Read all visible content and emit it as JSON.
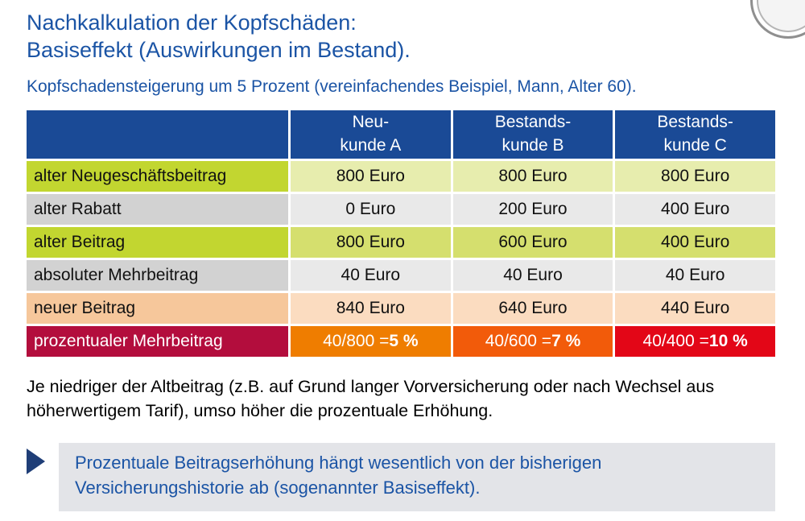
{
  "icons": {
    "logo": "partial-coin-emblem",
    "bullet": "right-arrow-triangle"
  },
  "colors": {
    "title_blue": "#1b54a5",
    "header_blue": "#1a4a96",
    "green_label": "#c2d630",
    "green_light": "#e7edae",
    "green_dark": "#d5df6e",
    "gray_label": "#d2d2d2",
    "gray_light": "#e9e9e9",
    "orange_label": "#f6c79b",
    "orange_light": "#fbdcc0",
    "result_crimson": "#b30d3d",
    "result_orange": "#ef7d00",
    "result_orange_red": "#f25b0a",
    "result_red": "#e30617",
    "callout_bg": "#e3e4e8",
    "arrow_navy": "#1f3e77"
  },
  "title": {
    "line1": "Nachkalkulation der Kopfschäden:",
    "line2": "Basiseffekt (Auswirkungen im Bestand)."
  },
  "subtitle": "Kopfschadensteigerung um 5 Prozent (vereinfachendes Beispiel, Mann, Alter 60).",
  "table": {
    "columns": [
      "Neu-\nkunde A",
      "Bestands-\nkunde B",
      "Bestands-\nkunde C"
    ],
    "rows": [
      {
        "label": "alter Neugeschäftsbeitrag",
        "values": [
          "800 Euro",
          "800 Euro",
          "800 Euro"
        ]
      },
      {
        "label": "alter Rabatt",
        "values": [
          "0 Euro",
          "200 Euro",
          "400 Euro"
        ]
      },
      {
        "label": "alter Beitrag",
        "values": [
          "800 Euro",
          "600 Euro",
          "400 Euro"
        ]
      },
      {
        "label": "absoluter Mehrbeitrag",
        "values": [
          "40 Euro",
          "40 Euro",
          "40 Euro"
        ]
      },
      {
        "label": "neuer Beitrag",
        "values": [
          "840 Euro",
          "640 Euro",
          "440 Euro"
        ]
      },
      {
        "label": "prozentualer Mehrbeitrag",
        "values": [
          {
            "expr": "40/800 = ",
            "pct": "5 %"
          },
          {
            "expr": "40/600 = ",
            "pct": "7 %"
          },
          {
            "expr": "40/400 = ",
            "pct": "10 %"
          }
        ]
      }
    ]
  },
  "paragraph": "Je niedriger der Altbeitrag (z.B. auf Grund langer Vorversicherung oder nach Wechsel aus höherwertigem Tarif), umso höher die prozentuale Erhöhung.",
  "callout": "Prozentuale Beitragserhöhung hängt wesentlich von der bisherigen Versicherungshistorie ab (sogenannter Basiseffekt)."
}
